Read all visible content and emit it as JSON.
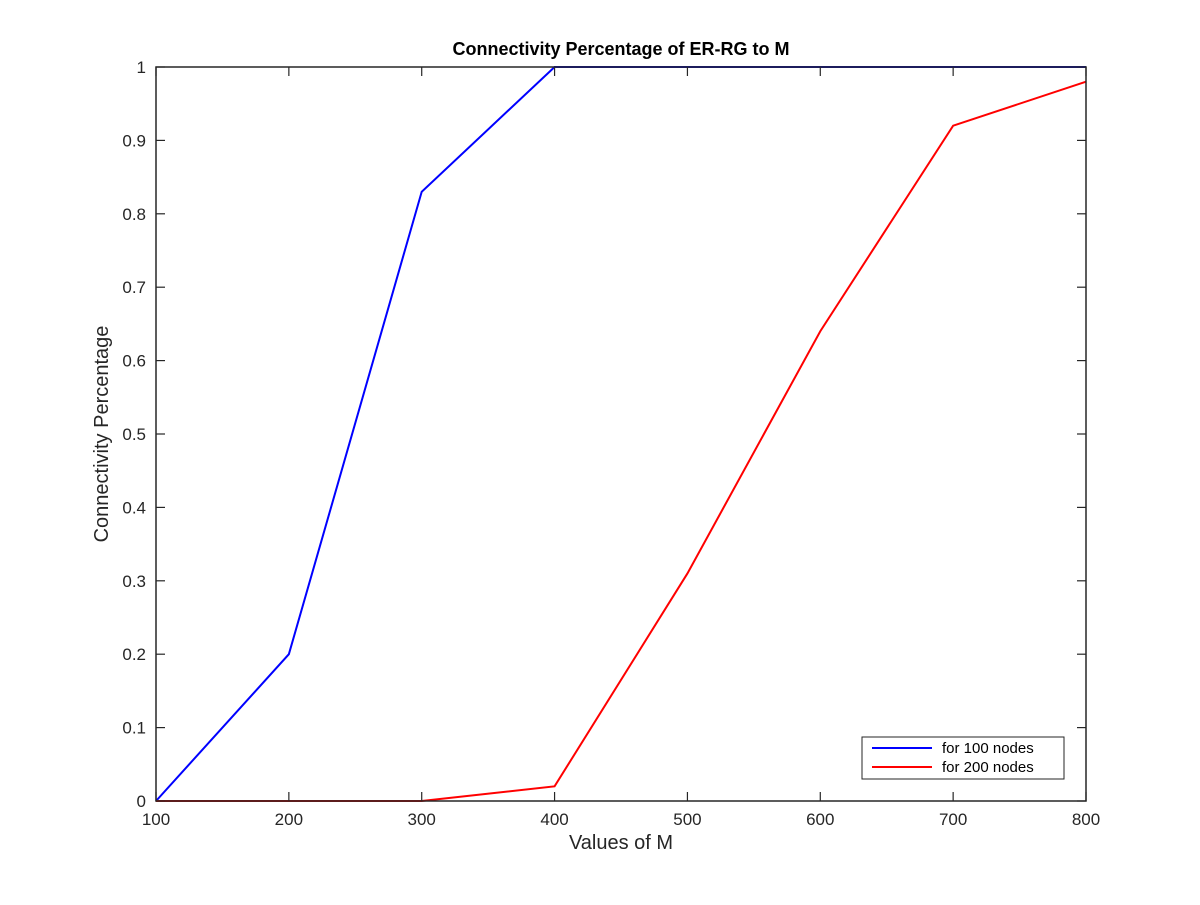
{
  "chart_data": {
    "type": "line",
    "title": "Connectivity Percentage of ER-RG to M",
    "xlabel": "Values of M",
    "ylabel": "Connectivity Percentage",
    "xlim": [
      100,
      800
    ],
    "ylim": [
      0,
      1
    ],
    "xticks": [
      "100",
      "200",
      "300",
      "400",
      "500",
      "600",
      "700",
      "800"
    ],
    "yticks": [
      "0",
      "0.1",
      "0.2",
      "0.3",
      "0.4",
      "0.5",
      "0.6",
      "0.7",
      "0.8",
      "0.9",
      "1"
    ],
    "x": [
      100,
      200,
      300,
      400,
      500,
      600,
      700,
      800
    ],
    "series": [
      {
        "name": "for 100 nodes",
        "color": "#0000ff",
        "values": [
          0,
          0.2,
          0.83,
          1,
          1,
          1,
          1,
          1
        ]
      },
      {
        "name": "for 200 nodes",
        "color": "#ff0000",
        "values": [
          0,
          0,
          0,
          0.02,
          0.31,
          0.64,
          0.92,
          0.98
        ]
      }
    ],
    "grid": false,
    "legend_position": "bottom-right"
  }
}
